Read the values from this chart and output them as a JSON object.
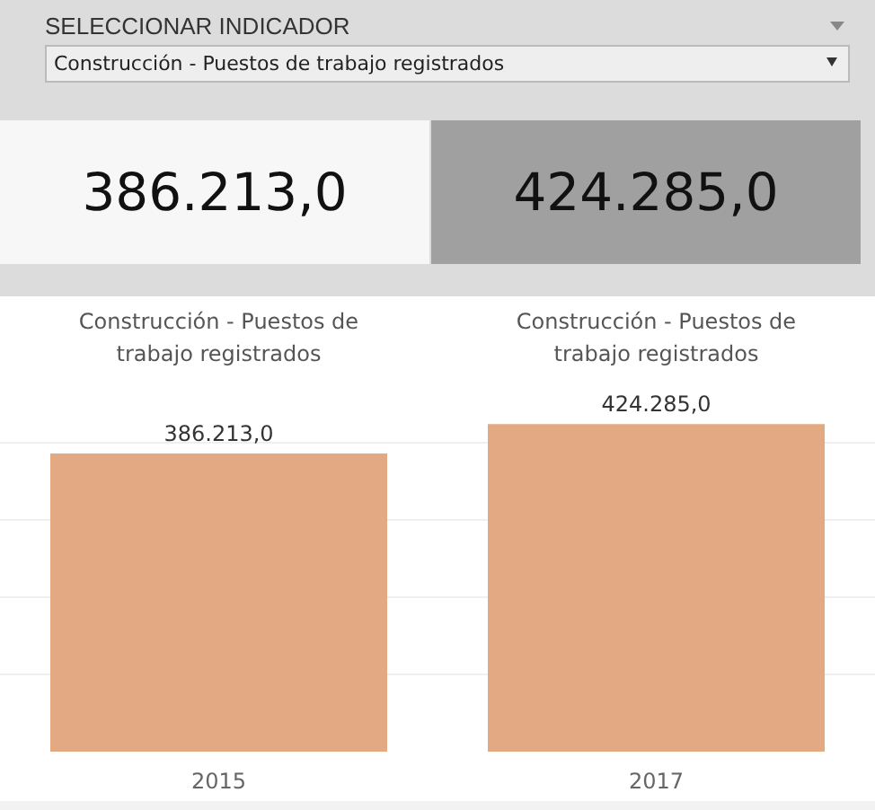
{
  "chart_data": [
    {
      "type": "other",
      "title": "SELECCIONAR INDICADOR",
      "annotations": [
        "Construcción - Puestos de trabajo registrados",
        "386.213,0",
        "424.285,0"
      ]
    },
    {
      "type": "bar",
      "title": "Construcción - Puestos de trabajo registrados",
      "annotations": [
        "Construcción - Puestos de trabajo registrados"
      ],
      "categories": [
        "2015",
        "2017"
      ],
      "values": [
        386213,
        424285
      ],
      "color": "#e2a982",
      "value_labels": [
        "386.213,0",
        "424.285,0"
      ],
      "yticks": [
        {
          "value": 100000,
          "label": null
        },
        {
          "value": 200000,
          "label": null
        },
        {
          "value": 300000,
          "label": null
        },
        {
          "value": 400000,
          "label": null
        }
      ],
      "grid": "y",
      "tick_labels": "x"
    }
  ]
}
